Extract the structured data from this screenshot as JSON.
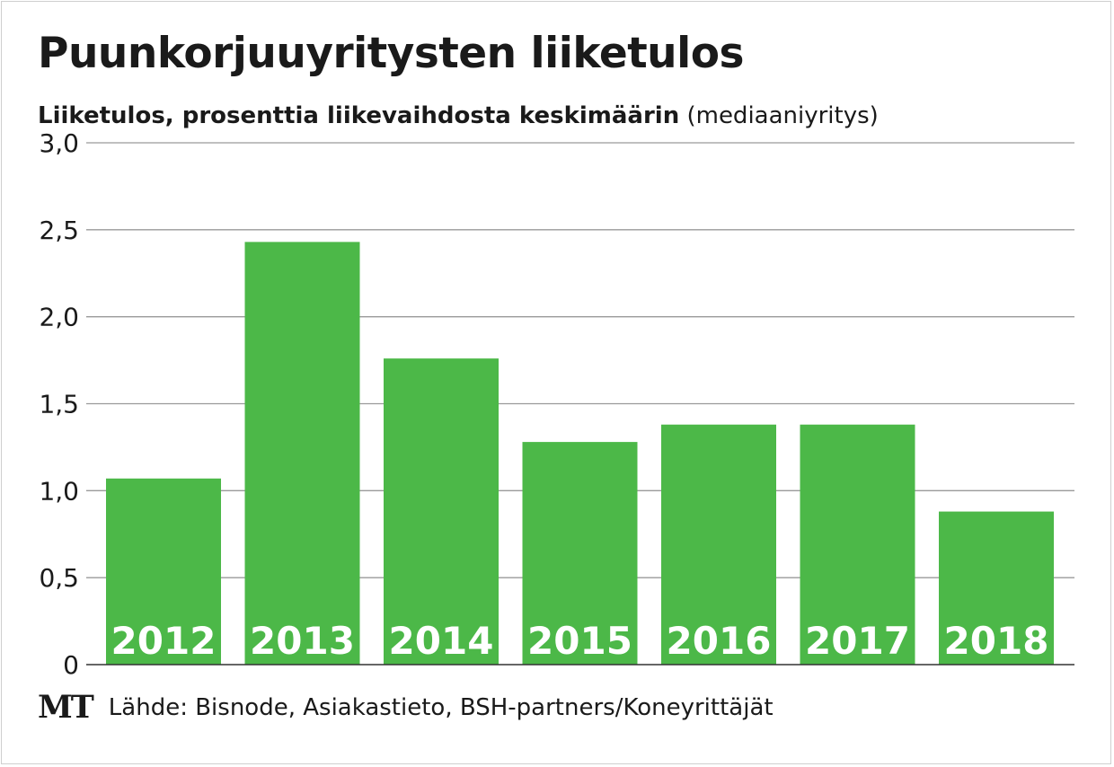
{
  "header": {
    "title": "Puunkorjuuyritysten liiketulos",
    "subtitle_strong": "Liiketulos, prosenttia liikevaihdosta keskimäärin",
    "subtitle_light": "(mediaaniyritys)"
  },
  "footer": {
    "logo": "MT",
    "source": "Lähde: Bisnode, Asiakastieto, BSH-partners/Koneyrittäjät"
  },
  "colors": {
    "bar": "#4cb848",
    "grid": "#9a9a9a",
    "axis": "#333333",
    "bar_label": "#ffffff",
    "text": "#1a1a1a"
  },
  "chart_data": {
    "type": "bar",
    "title": "Puunkorjuuyritysten liiketulos",
    "subtitle": "Liiketulos, prosenttia liikevaihdosta keskimäärin (mediaaniyritys)",
    "categories": [
      "2012",
      "2013",
      "2014",
      "2015",
      "2016",
      "2017",
      "2018"
    ],
    "values": [
      1.07,
      2.43,
      1.76,
      1.28,
      1.38,
      1.38,
      0.88
    ],
    "ylim": [
      0,
      3.0
    ],
    "yticks": [
      0,
      0.5,
      1.0,
      1.5,
      2.0,
      2.5,
      3.0
    ],
    "ytick_labels": [
      "0",
      "0,5",
      "1,0",
      "1,5",
      "2,0",
      "2,5",
      "3,0"
    ],
    "grid": true,
    "xlabel": "",
    "ylabel": ""
  }
}
